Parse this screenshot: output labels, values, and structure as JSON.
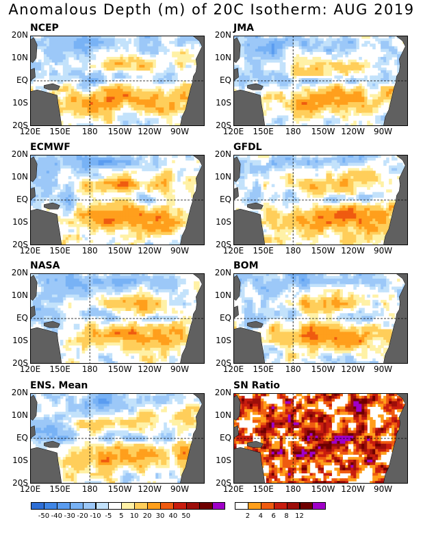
{
  "title": "Anomalous Depth (m) of 20C Isotherm: AUG 2019",
  "lat_labels": [
    "20N",
    "10N",
    "EQ",
    "10S",
    "20S"
  ],
  "lon_labels": [
    "120E",
    "150E",
    "180",
    "150W",
    "120W",
    "90W"
  ],
  "panels": [
    {
      "id": "ncep",
      "label": "NCEP",
      "scale": "anomaly",
      "seed": 11,
      "warm_north": 0.55,
      "warm_south": 0.75,
      "cool_west": 0.55
    },
    {
      "id": "jma",
      "label": "JMA",
      "scale": "anomaly",
      "seed": 23,
      "warm_north": 0.45,
      "warm_south": 0.8,
      "cool_west": 0.6
    },
    {
      "id": "ecmwf",
      "label": "ECMWF",
      "scale": "anomaly",
      "seed": 37,
      "warm_north": 0.7,
      "warm_south": 0.8,
      "cool_west": 0.45
    },
    {
      "id": "gfdl",
      "label": "GFDL",
      "scale": "anomaly",
      "seed": 41,
      "warm_north": 0.6,
      "warm_south": 0.85,
      "cool_west": 0.5
    },
    {
      "id": "nasa",
      "label": "NASA",
      "scale": "anomaly",
      "seed": 53,
      "warm_north": 0.6,
      "warm_south": 0.85,
      "cool_west": 0.55
    },
    {
      "id": "bom",
      "label": "BOM",
      "scale": "anomaly",
      "seed": 67,
      "warm_north": 0.55,
      "warm_south": 0.95,
      "cool_west": 0.45
    },
    {
      "id": "ens-mean",
      "label": "ENS. Mean",
      "scale": "anomaly",
      "seed": 79,
      "warm_north": 0.6,
      "warm_south": 0.75,
      "cool_west": 0.5
    },
    {
      "id": "sn-ratio",
      "label": "SN Ratio",
      "scale": "snr",
      "seed": 97,
      "warm_north": 0.5,
      "warm_south": 0.7,
      "cool_west": 0.3
    }
  ],
  "anomaly_scale": {
    "colors": [
      "#2e6fd6",
      "#3f86e6",
      "#5a9cf0",
      "#78b2f5",
      "#9cc8f8",
      "#c3e2fb",
      "#ffffff",
      "#fff1a6",
      "#ffce5a",
      "#ff9f1c",
      "#ef5b10",
      "#c81d0f",
      "#9d0e0a",
      "#6f0000",
      "#a000c8"
    ],
    "labels": [
      "-50",
      "-40",
      "-30",
      "-20",
      "-10",
      "-5",
      "5",
      "10",
      "20",
      "30",
      "40",
      "50"
    ]
  },
  "snr_scale": {
    "colors": [
      "#ffffff",
      "#ff9f1c",
      "#ef5b10",
      "#c81d0f",
      "#9d0e0a",
      "#6f0000",
      "#a000c8"
    ],
    "labels": [
      "2",
      "4",
      "6",
      "8",
      "12"
    ]
  },
  "land_color": "#606060"
}
